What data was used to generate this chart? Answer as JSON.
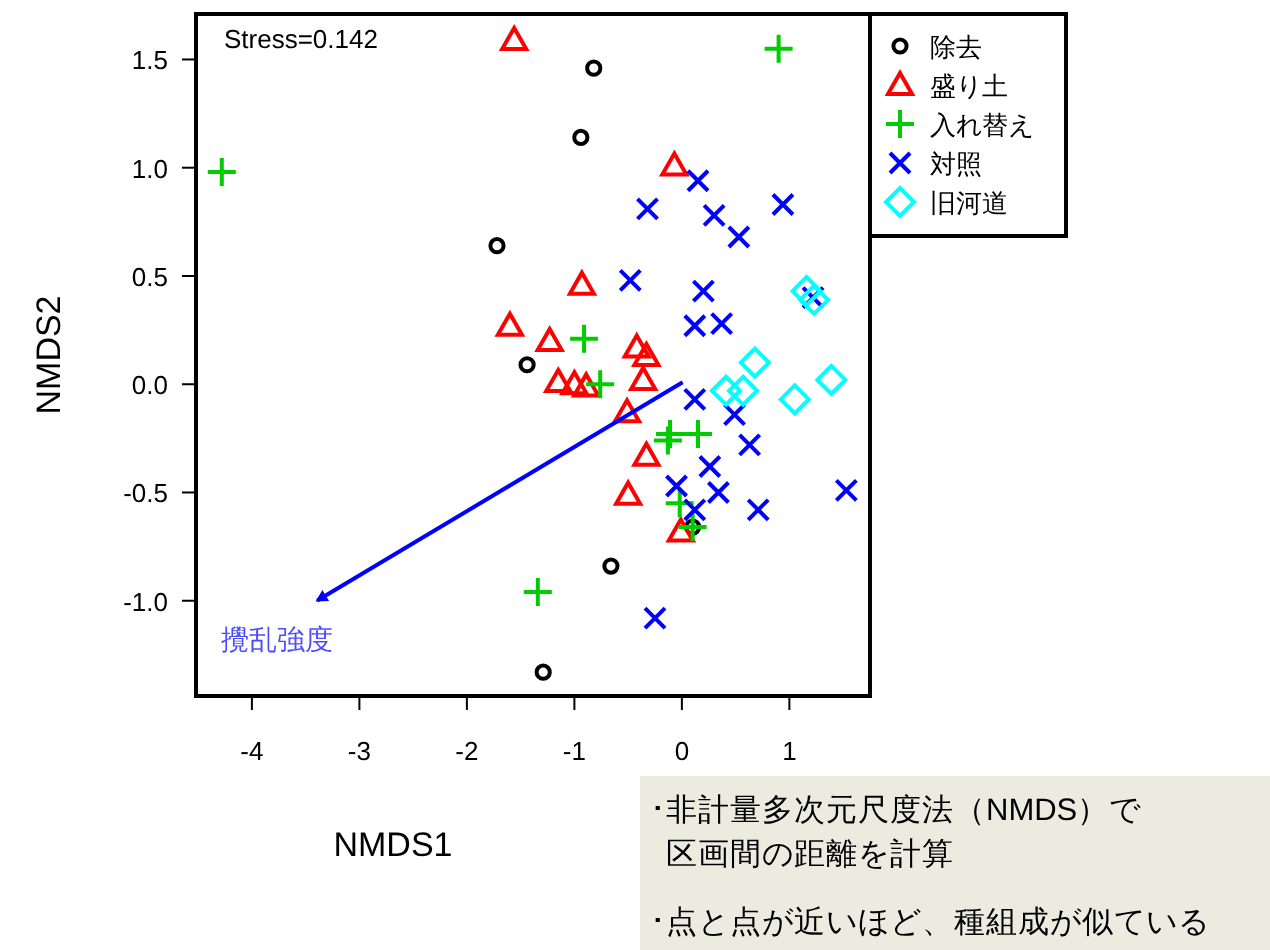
{
  "chart_data": {
    "type": "scatter",
    "xlabel": "NMDS1",
    "ylabel": "NMDS2",
    "xlim": [
      -4.52,
      1.75
    ],
    "ylim": [
      -1.44,
      1.71
    ],
    "xticks": [
      -4,
      -3,
      -2,
      -1,
      0,
      1
    ],
    "yticks": [
      {
        "value": -1,
        "label": "-1.0"
      },
      {
        "value": -0.5,
        "label": "-0.5"
      },
      {
        "value": 0,
        "label": "0.0"
      },
      {
        "value": 0.5,
        "label": "0.5"
      },
      {
        "value": 1,
        "label": "1.0"
      },
      {
        "value": 1.5,
        "label": "1.5"
      }
    ],
    "legend": "top right",
    "grid": false,
    "series": [
      {
        "name": "除去",
        "marker": "circle",
        "color": "#000000",
        "x": [
          -0.82,
          -0.94,
          -1.72,
          -1.44,
          -0.66,
          -1.29,
          0.1
        ],
        "values": [
          1.46,
          1.14,
          0.64,
          0.09,
          -0.84,
          -1.33,
          -0.66
        ]
      },
      {
        "name": "盛り土",
        "marker": "triangle",
        "color": "#ff0000",
        "x": [
          -1.56,
          -0.07,
          -0.93,
          -1.6,
          -1.23,
          -0.42,
          -0.33,
          -0.36,
          -1.15,
          -1.0,
          -0.89,
          -0.51,
          -0.33,
          -0.5,
          -0.01
        ],
        "values": [
          1.59,
          1.01,
          0.46,
          0.27,
          0.2,
          0.17,
          0.13,
          0.02,
          0.01,
          0.0,
          -0.01,
          -0.13,
          -0.33,
          -0.51,
          -0.68
        ]
      },
      {
        "name": "入れ替え",
        "marker": "plus",
        "color": "#00cd00",
        "x": [
          -4.28,
          0.9,
          -0.91,
          -0.76,
          -0.11,
          -0.13,
          0.15,
          -0.02,
          0.1,
          -1.34
        ],
        "values": [
          0.98,
          1.55,
          0.21,
          0.0,
          -0.23,
          -0.26,
          -0.23,
          -0.55,
          -0.66,
          -0.96
        ]
      },
      {
        "name": "対照",
        "marker": "cross",
        "color": "#0000ff",
        "x": [
          0.15,
          -0.32,
          0.3,
          0.94,
          0.53,
          -0.48,
          0.2,
          1.22,
          0.12,
          0.37,
          0.12,
          0.49,
          0.63,
          0.26,
          -0.05,
          0.34,
          1.53,
          0.71,
          0.12,
          -0.25
        ],
        "values": [
          0.94,
          0.81,
          0.78,
          0.83,
          0.68,
          0.48,
          0.43,
          0.4,
          0.27,
          0.28,
          -0.07,
          -0.14,
          -0.28,
          -0.38,
          -0.47,
          -0.5,
          -0.49,
          -0.58,
          -0.58,
          -1.08
        ]
      },
      {
        "name": "旧河道",
        "marker": "diamond",
        "color": "#00ffff",
        "x": [
          1.16,
          1.23,
          0.68,
          0.41,
          0.57,
          1.05,
          1.39
        ],
        "values": [
          0.43,
          0.39,
          0.1,
          -0.03,
          -0.03,
          -0.07,
          0.02
        ]
      }
    ],
    "annotations": [
      "Stress=0.142",
      "･非計量多次元尺度法（NMDS）で",
      "区画間の距離を計算",
      "･点と点が近いほど、種組成が似ている",
      "攪乱強度"
    ]
  }
}
